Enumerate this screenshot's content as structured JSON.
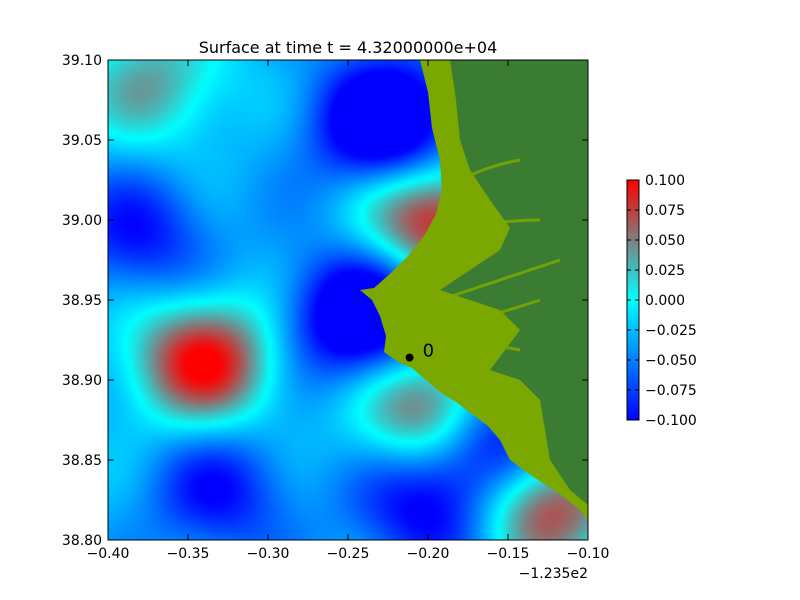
{
  "chart_data": {
    "type": "heatmap",
    "title": "Surface at time t = 4.32000000e+04",
    "xlabel": "",
    "ylabel": "",
    "x_offset_label": "−1.235e2",
    "xlim": [
      -0.4,
      -0.1
    ],
    "ylim": [
      38.8,
      39.1
    ],
    "x_ticks": [
      {
        "value": -0.4,
        "label": "−0.40"
      },
      {
        "value": -0.35,
        "label": "−0.35"
      },
      {
        "value": -0.3,
        "label": "−0.30"
      },
      {
        "value": -0.25,
        "label": "−0.25"
      },
      {
        "value": -0.2,
        "label": "−0.20"
      },
      {
        "value": -0.15,
        "label": "−0.15"
      },
      {
        "value": -0.1,
        "label": "−0.10"
      }
    ],
    "y_ticks": [
      {
        "value": 38.8,
        "label": "38.80"
      },
      {
        "value": 38.85,
        "label": "38.85"
      },
      {
        "value": 38.9,
        "label": "38.90"
      },
      {
        "value": 38.95,
        "label": "38.95"
      },
      {
        "value": 39.0,
        "label": "39.00"
      },
      {
        "value": 39.05,
        "label": "39.05"
      },
      {
        "value": 39.1,
        "label": "39.10"
      }
    ],
    "colorbar": {
      "range": [
        -0.1,
        0.1
      ],
      "ticks": [
        {
          "value": 0.1,
          "label": "0.100"
        },
        {
          "value": 0.075,
          "label": "0.075"
        },
        {
          "value": 0.05,
          "label": "0.050"
        },
        {
          "value": 0.025,
          "label": "0.025"
        },
        {
          "value": 0.0,
          "label": "0.000"
        },
        {
          "value": -0.025,
          "label": "−0.025"
        },
        {
          "value": -0.05,
          "label": "−0.050"
        },
        {
          "value": -0.075,
          "label": "−0.075"
        },
        {
          "value": -0.1,
          "label": "−0.100"
        }
      ],
      "colors": [
        "#0000ff",
        "#00ffff",
        "#ff0000"
      ]
    },
    "features": [
      {
        "x": -0.34,
        "y": 38.912,
        "value": 0.1
      },
      {
        "x": -0.37,
        "y": 39.085,
        "value": 0.05
      },
      {
        "x": -0.225,
        "y": 39.06,
        "value": -0.1
      },
      {
        "x": -0.195,
        "y": 39.0,
        "value": 0.1
      },
      {
        "x": -0.24,
        "y": 38.94,
        "value": -0.1
      },
      {
        "x": -0.13,
        "y": 38.825,
        "value": 0.1
      },
      {
        "x": -0.16,
        "y": 38.86,
        "value": -0.1
      },
      {
        "x": -0.195,
        "y": 38.88,
        "value": 0.1
      },
      {
        "x": -0.2,
        "y": 38.82,
        "value": -0.06
      },
      {
        "x": -0.38,
        "y": 38.99,
        "value": -0.05
      },
      {
        "x": -0.33,
        "y": 38.83,
        "value": -0.05
      }
    ],
    "land_colors": {
      "coastal": "#7ba800",
      "upland": "#3a7d32"
    },
    "gauge": {
      "x": -0.2115,
      "y": 38.914,
      "label": "0"
    }
  }
}
